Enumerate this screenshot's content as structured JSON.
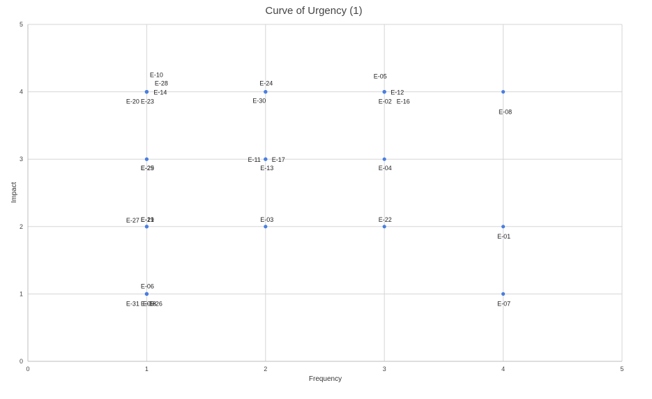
{
  "chart_data": {
    "type": "scatter",
    "title": "Curve of Urgency (1)",
    "xlabel": "Frequency",
    "ylabel": "Impact",
    "xlim": [
      0,
      5
    ],
    "ylim": [
      0,
      5
    ],
    "xticks": [
      "0",
      "1",
      "2",
      "3",
      "4",
      "5"
    ],
    "yticks": [
      "0",
      "1",
      "2",
      "3",
      "4",
      "5"
    ],
    "grid": true,
    "point_color": "#4a7fe0",
    "points": [
      {
        "x": 1,
        "y": 4,
        "label": "E-10"
      },
      {
        "x": 1,
        "y": 4,
        "label": "E-28"
      },
      {
        "x": 1,
        "y": 4,
        "label": "E-14"
      },
      {
        "x": 1,
        "y": 4,
        "label": "E-20"
      },
      {
        "x": 1,
        "y": 4,
        "label": "E-23"
      },
      {
        "x": 2,
        "y": 4,
        "label": "E-24"
      },
      {
        "x": 2,
        "y": 4,
        "label": "E-30"
      },
      {
        "x": 3,
        "y": 4,
        "label": "E-05"
      },
      {
        "x": 3,
        "y": 4,
        "label": "E-12"
      },
      {
        "x": 3,
        "y": 4,
        "label": "E-02"
      },
      {
        "x": 3,
        "y": 4,
        "label": "E-16"
      },
      {
        "x": 4,
        "y": 4,
        "label": "E-08"
      },
      {
        "x": 1,
        "y": 3,
        "label": "E-25"
      },
      {
        "x": 1,
        "y": 3,
        "label": "E-29"
      },
      {
        "x": 2,
        "y": 3,
        "label": "E-11"
      },
      {
        "x": 2,
        "y": 3,
        "label": "E-17"
      },
      {
        "x": 2,
        "y": 3,
        "label": "E-13"
      },
      {
        "x": 3,
        "y": 3,
        "label": "E-04"
      },
      {
        "x": 1,
        "y": 2,
        "label": "E-27"
      },
      {
        "x": 1,
        "y": 2,
        "label": "E-21"
      },
      {
        "x": 1,
        "y": 2,
        "label": "E-19"
      },
      {
        "x": 2,
        "y": 2,
        "label": "E-03"
      },
      {
        "x": 3,
        "y": 2,
        "label": "E-22"
      },
      {
        "x": 4,
        "y": 2,
        "label": "E-01"
      },
      {
        "x": 1,
        "y": 1,
        "label": "E-06"
      },
      {
        "x": 1,
        "y": 1,
        "label": "E-31"
      },
      {
        "x": 1,
        "y": 1,
        "label": "E-09"
      },
      {
        "x": 1,
        "y": 1,
        "label": "E-18"
      },
      {
        "x": 1,
        "y": 1,
        "label": "E-26"
      },
      {
        "x": 4,
        "y": 1,
        "label": "E-07"
      }
    ]
  }
}
